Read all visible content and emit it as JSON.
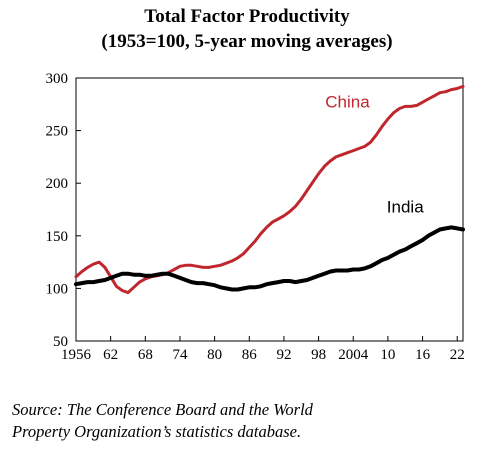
{
  "chart_data": {
    "type": "line",
    "title": "Total Factor Productivity",
    "subtitle": "(1953=100, 5-year moving averages)",
    "xlabel": "",
    "ylabel": "",
    "xlim": [
      1956,
      2023
    ],
    "ylim": [
      50,
      300
    ],
    "yticks": [
      "300",
      "250",
      "200",
      "150",
      "100",
      "50"
    ],
    "ytick_values": [
      300,
      250,
      200,
      150,
      100,
      50
    ],
    "xticks": [
      "1956",
      "62",
      "68",
      "74",
      "80",
      "86",
      "92",
      "98",
      "2004",
      "10",
      "16",
      "22"
    ],
    "xtick_values": [
      1956,
      1962,
      1968,
      1974,
      1980,
      1986,
      1992,
      1998,
      2004,
      2010,
      2016,
      2022
    ],
    "grid": false,
    "legend": "inline labels",
    "series": [
      {
        "name": "China",
        "color": "#c0272d",
        "x": [
          1956,
          1957,
          1958,
          1959,
          1960,
          1961,
          1962,
          1963,
          1964,
          1965,
          1966,
          1967,
          1968,
          1969,
          1970,
          1971,
          1972,
          1973,
          1974,
          1975,
          1976,
          1977,
          1978,
          1979,
          1980,
          1981,
          1982,
          1983,
          1984,
          1985,
          1986,
          1987,
          1988,
          1989,
          1990,
          1991,
          1992,
          1993,
          1994,
          1995,
          1996,
          1997,
          1998,
          1999,
          2000,
          2001,
          2002,
          2003,
          2004,
          2005,
          2006,
          2007,
          2008,
          2009,
          2010,
          2011,
          2012,
          2013,
          2014,
          2015,
          2016,
          2017,
          2018,
          2019,
          2020,
          2021,
          2022,
          2023
        ],
        "y": [
          111,
          116,
          120,
          123,
          125,
          120,
          111,
          102,
          98,
          96,
          101,
          106,
          109,
          111,
          112,
          113,
          115,
          118,
          121,
          122,
          122,
          121,
          120,
          120,
          121,
          122,
          124,
          126,
          129,
          133,
          139,
          145,
          152,
          158,
          163,
          166,
          169,
          173,
          178,
          185,
          193,
          201,
          209,
          216,
          221,
          225,
          227,
          229,
          231,
          233,
          235,
          239,
          246,
          254,
          261,
          267,
          271,
          273,
          273,
          274,
          277,
          280,
          283,
          286,
          287,
          289,
          290,
          292
        ]
      },
      {
        "name": "India",
        "color": "#000000",
        "x": [
          1956,
          1957,
          1958,
          1959,
          1960,
          1961,
          1962,
          1963,
          1964,
          1965,
          1966,
          1967,
          1968,
          1969,
          1970,
          1971,
          1972,
          1973,
          1974,
          1975,
          1976,
          1977,
          1978,
          1979,
          1980,
          1981,
          1982,
          1983,
          1984,
          1985,
          1986,
          1987,
          1988,
          1989,
          1990,
          1991,
          1992,
          1993,
          1994,
          1995,
          1996,
          1997,
          1998,
          1999,
          2000,
          2001,
          2002,
          2003,
          2004,
          2005,
          2006,
          2007,
          2008,
          2009,
          2010,
          2011,
          2012,
          2013,
          2014,
          2015,
          2016,
          2017,
          2018,
          2019,
          2020,
          2021,
          2022,
          2023
        ],
        "y": [
          104,
          105,
          106,
          106,
          107,
          108,
          110,
          112,
          114,
          114,
          113,
          113,
          112,
          112,
          113,
          114,
          114,
          112,
          110,
          108,
          106,
          105,
          105,
          104,
          103,
          101,
          100,
          99,
          99,
          100,
          101,
          101,
          102,
          104,
          105,
          106,
          107,
          107,
          106,
          107,
          108,
          110,
          112,
          114,
          116,
          117,
          117,
          117,
          118,
          118,
          119,
          121,
          124,
          127,
          129,
          132,
          135,
          137,
          140,
          143,
          146,
          150,
          153,
          156,
          157,
          158,
          157,
          156
        ]
      }
    ]
  },
  "source_line_1": "Source: The Conference Board and the World",
  "source_line_2": "Property Organization’s statistics database."
}
